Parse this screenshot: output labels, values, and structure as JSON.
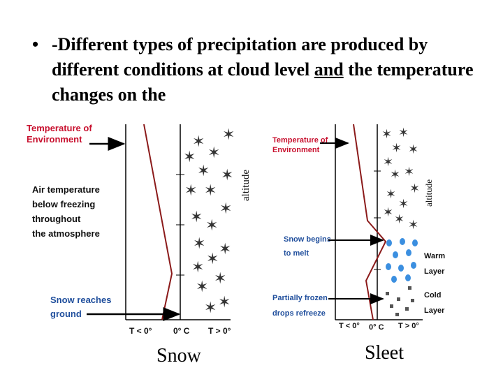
{
  "slide": {
    "bullet": "•",
    "text_part1": "-Different types of precipitation are produced by different conditions at cloud level ",
    "text_underlined": "and",
    "text_part2": " the temperature changes on the"
  },
  "snow_diagram": {
    "temp_env_line1": "Temperature of",
    "temp_env_line2": "Environment",
    "air_temp_line1": "Air temperature",
    "air_temp_line2": "below freezing",
    "air_temp_line3": "throughout",
    "air_temp_line4": "the atmosphere",
    "reaches_line1": "Snow reaches",
    "reaches_line2": "ground",
    "altitude": "altitude",
    "tick_low": "T < 0°",
    "tick_zero": "0° C",
    "tick_high": "T > 0°",
    "caption": "Snow"
  },
  "sleet_diagram": {
    "temp_env_line1": "Temperature of",
    "temp_env_line2": "Environment",
    "melt_line1": "Snow begins",
    "melt_line2": "to melt",
    "refreeze_line1": "Partially frozen",
    "refreeze_line2": "drops refreeze",
    "warm_line1": "Warm",
    "warm_line2": "Layer",
    "cold_line1": "Cold",
    "cold_line2": "Layer",
    "altitude": "altitude",
    "tick_low": "T < 0°",
    "tick_zero": "0° C",
    "tick_high": "T > 0°",
    "caption": "Sleet"
  },
  "colors": {
    "label_red": "#c8102e",
    "label_blue": "#1f4e9c",
    "temp_line": "#8b1a1a",
    "rain_drop": "#3b8fe0",
    "sleet_pellet": "#555555"
  }
}
